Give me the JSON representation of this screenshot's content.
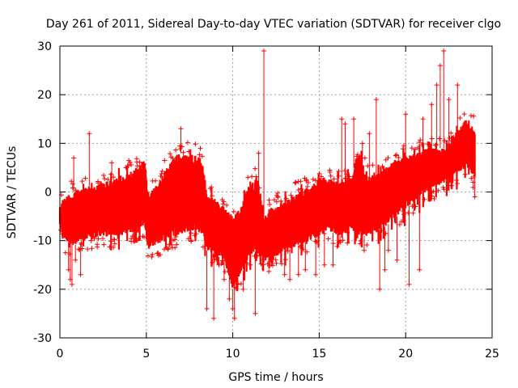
{
  "chart_data": {
    "type": "scatter",
    "title": "Day 261 of 2011, Sidereal Day-to-day VTEC variation (SDTVAR) for receiver clgo",
    "xlabel": "GPS time / hours",
    "ylabel": "SDTVAR / TECUs",
    "xlim": [
      0,
      25
    ],
    "ylim": [
      -30,
      30
    ],
    "x_ticks": [
      "0",
      "5",
      "10",
      "15",
      "20",
      "25"
    ],
    "y_ticks": [
      "30",
      "20",
      "10",
      "0",
      "-10",
      "-20",
      "-30"
    ],
    "grid": true,
    "marker": "+",
    "color": "#ff0000",
    "series": [
      {
        "name": "SDTVAR",
        "band": [
          {
            "x": 0.0,
            "lo": -7,
            "hi": -3
          },
          {
            "x": 0.3,
            "lo": -10,
            "hi": -1
          },
          {
            "x": 0.8,
            "lo": -11,
            "hi": 0
          },
          {
            "x": 1.5,
            "lo": -10,
            "hi": 1
          },
          {
            "x": 2.5,
            "lo": -9,
            "hi": 2
          },
          {
            "x": 3.5,
            "lo": -9,
            "hi": 3
          },
          {
            "x": 4.5,
            "lo": -8,
            "hi": 5
          },
          {
            "x": 4.9,
            "lo": -7,
            "hi": 7
          },
          {
            "x": 5.1,
            "lo": -12,
            "hi": 0
          },
          {
            "x": 5.5,
            "lo": -11,
            "hi": 1
          },
          {
            "x": 6.2,
            "lo": -10,
            "hi": 5
          },
          {
            "x": 6.8,
            "lo": -9,
            "hi": 8
          },
          {
            "x": 7.5,
            "lo": -8,
            "hi": 8
          },
          {
            "x": 8.2,
            "lo": -9,
            "hi": 7
          },
          {
            "x": 8.5,
            "lo": -12,
            "hi": 0
          },
          {
            "x": 9.0,
            "lo": -13,
            "hi": -2
          },
          {
            "x": 9.5,
            "lo": -14,
            "hi": -3
          },
          {
            "x": 10.0,
            "lo": -20,
            "hi": -5
          },
          {
            "x": 10.5,
            "lo": -17,
            "hi": -3
          },
          {
            "x": 11.0,
            "lo": -13,
            "hi": 2
          },
          {
            "x": 11.4,
            "lo": -12,
            "hi": 3
          },
          {
            "x": 11.8,
            "lo": -14,
            "hi": -5
          },
          {
            "x": 12.4,
            "lo": -14,
            "hi": -3
          },
          {
            "x": 13.0,
            "lo": -12,
            "hi": -2
          },
          {
            "x": 13.8,
            "lo": -11,
            "hi": 0
          },
          {
            "x": 14.5,
            "lo": -10,
            "hi": 1
          },
          {
            "x": 15.0,
            "lo": -9,
            "hi": 3
          },
          {
            "x": 15.5,
            "lo": -8,
            "hi": 3
          },
          {
            "x": 16.2,
            "lo": -9,
            "hi": 2
          },
          {
            "x": 16.8,
            "lo": -8,
            "hi": 3
          },
          {
            "x": 17.3,
            "lo": -9,
            "hi": 8
          },
          {
            "x": 17.8,
            "lo": -9,
            "hi": 3
          },
          {
            "x": 18.5,
            "lo": -8,
            "hi": 4
          },
          {
            "x": 19.2,
            "lo": -6,
            "hi": 6
          },
          {
            "x": 19.8,
            "lo": -4,
            "hi": 7
          },
          {
            "x": 20.5,
            "lo": -2,
            "hi": 8
          },
          {
            "x": 21.2,
            "lo": 0,
            "hi": 9
          },
          {
            "x": 21.8,
            "lo": 1,
            "hi": 9
          },
          {
            "x": 22.5,
            "lo": 3,
            "hi": 9
          },
          {
            "x": 23.0,
            "lo": 4,
            "hi": 13
          },
          {
            "x": 23.5,
            "lo": 5,
            "hi": 15
          },
          {
            "x": 24.0,
            "lo": 3,
            "hi": 13
          }
        ],
        "outliers": [
          [
            0.5,
            -16
          ],
          [
            0.6,
            -18
          ],
          [
            0.7,
            -19
          ],
          [
            0.9,
            -14
          ],
          [
            0.8,
            7
          ],
          [
            1.2,
            -17
          ],
          [
            1.7,
            12
          ],
          [
            1.8,
            -10
          ],
          [
            3.0,
            6
          ],
          [
            7.0,
            13
          ],
          [
            8.5,
            -24
          ],
          [
            8.9,
            -26
          ],
          [
            9.2,
            -15
          ],
          [
            9.5,
            -18
          ],
          [
            9.8,
            -22
          ],
          [
            10.0,
            -24
          ],
          [
            10.1,
            -26
          ],
          [
            10.3,
            -19
          ],
          [
            10.6,
            -20
          ],
          [
            11.0,
            -15
          ],
          [
            11.3,
            -25
          ],
          [
            11.5,
            8
          ],
          [
            11.8,
            29
          ],
          [
            12.2,
            -12
          ],
          [
            13.0,
            -17
          ],
          [
            13.3,
            -18
          ],
          [
            13.8,
            -17
          ],
          [
            14.2,
            -16
          ],
          [
            14.8,
            -17
          ],
          [
            15.3,
            -15
          ],
          [
            15.8,
            -15
          ],
          [
            16.2,
            -10
          ],
          [
            16.3,
            15
          ],
          [
            16.5,
            14
          ],
          [
            17.0,
            15
          ],
          [
            17.5,
            10
          ],
          [
            17.6,
            -12
          ],
          [
            17.9,
            12
          ],
          [
            18.3,
            19
          ],
          [
            18.5,
            -20
          ],
          [
            18.8,
            -16
          ],
          [
            19.0,
            -12
          ],
          [
            19.5,
            -14
          ],
          [
            20.0,
            16
          ],
          [
            20.2,
            -19
          ],
          [
            20.8,
            -16
          ],
          [
            21.0,
            15
          ],
          [
            21.5,
            18
          ],
          [
            21.8,
            22
          ],
          [
            22.0,
            26
          ],
          [
            22.2,
            29
          ],
          [
            22.5,
            19
          ],
          [
            23.0,
            22
          ],
          [
            23.4,
            14
          ],
          [
            24.0,
            -1
          ]
        ]
      }
    ]
  }
}
